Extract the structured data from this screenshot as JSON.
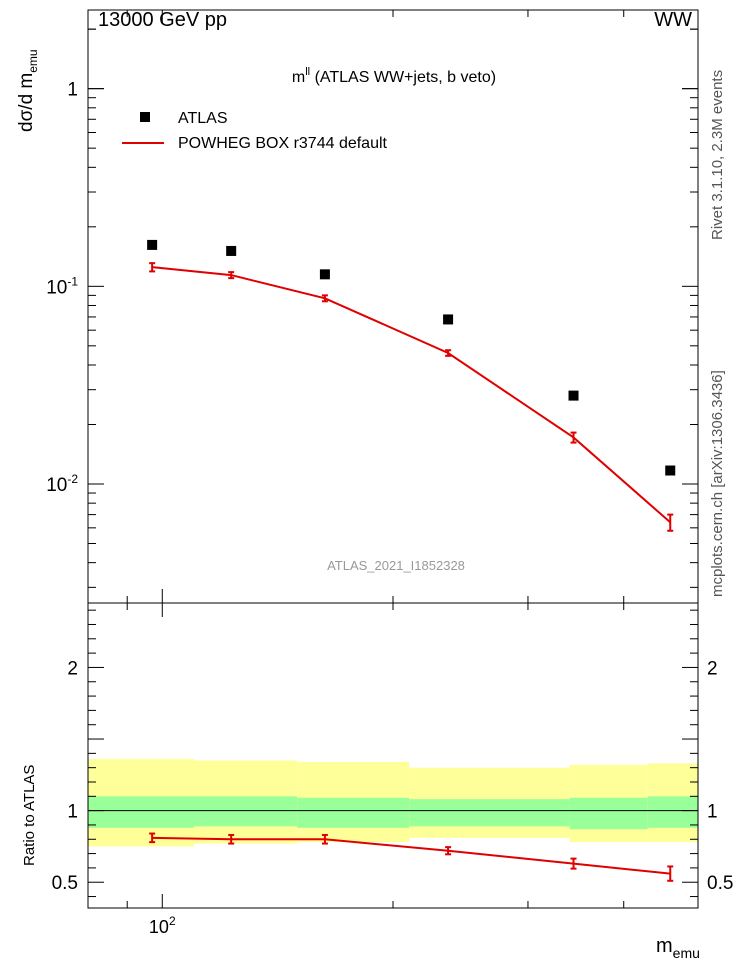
{
  "header": {
    "left": "13000 GeV pp",
    "right": "WW"
  },
  "plot_title": "m^{ll} (ATLAS WW+jets, b veto)",
  "plot_title_main": "m",
  "plot_title_sup": "ll",
  "plot_title_rest": " (ATLAS WW+jets, b veto)",
  "analysis_id": "ATLAS_2021_I1852328",
  "side_labels": {
    "rivet": "Rivet 3.1.10,  2.3M events",
    "mcplots": "mcplots.cern.ch [arXiv:1306.3436]"
  },
  "ylabel_main": {
    "prefix": "dσ/d m",
    "sub": "emu"
  },
  "ylabel_ratio": "Ratio to ATLAS",
  "xlabel": {
    "main": "m",
    "sub": "emu"
  },
  "legend": {
    "data": "ATLAS",
    "mc": "POWHEG BOX r3744 default"
  },
  "colors": {
    "data": "#000000",
    "mc": "#e00000",
    "band_outer": "#ffff99",
    "band_inner": "#99ff99"
  },
  "chart_data": {
    "type": "scatter",
    "xscale": "log",
    "yscale": "log",
    "xlim": [
      80,
      500
    ],
    "ylim": [
      0.0025,
      2.5
    ],
    "ratio_ylim": [
      0.32,
      2.45
    ],
    "xticks": [
      {
        "value": 100,
        "label": "10^2"
      }
    ],
    "yticks_main": [
      {
        "value": 1,
        "label": "1"
      },
      {
        "value": 0.1,
        "label": "10^-1"
      },
      {
        "value": 0.01,
        "label": "10^-2"
      }
    ],
    "yticks_ratio": [
      {
        "value": 0.5,
        "label": "0.5"
      },
      {
        "value": 1,
        "label": "1"
      },
      {
        "value": 2,
        "label": "2"
      }
    ],
    "bins": [
      {
        "lo": 80,
        "hi": 110
      },
      {
        "lo": 110,
        "hi": 150
      },
      {
        "lo": 150,
        "hi": 210
      },
      {
        "lo": 210,
        "hi": 340
      },
      {
        "lo": 340,
        "hi": 430
      },
      {
        "lo": 430,
        "hi": 500
      }
    ],
    "series": [
      {
        "name": "ATLAS",
        "x": [
          97,
          123,
          163,
          236,
          344,
          460
        ],
        "y": [
          0.162,
          0.151,
          0.115,
          0.068,
          0.028,
          0.0117
        ]
      },
      {
        "name": "POWHEG BOX r3744 default",
        "x": [
          97,
          123,
          163,
          236,
          344,
          460
        ],
        "y": [
          0.125,
          0.114,
          0.087,
          0.046,
          0.0172,
          0.0064
        ],
        "yerr": [
          0.006,
          0.004,
          0.003,
          0.0015,
          0.001,
          0.0006
        ]
      }
    ],
    "ratio": {
      "x": [
        97,
        123,
        163,
        236,
        344,
        460
      ],
      "y": [
        0.81,
        0.8,
        0.8,
        0.72,
        0.63,
        0.56
      ],
      "yerr": [
        0.03,
        0.03,
        0.03,
        0.025,
        0.035,
        0.05
      ],
      "band_inner": [
        [
          0.88,
          1.1
        ],
        [
          0.89,
          1.1
        ],
        [
          0.88,
          1.09
        ],
        [
          0.89,
          1.08
        ],
        [
          0.87,
          1.09
        ],
        [
          0.88,
          1.1
        ]
      ],
      "band_outer": [
        [
          0.75,
          1.36
        ],
        [
          0.77,
          1.35
        ],
        [
          0.78,
          1.34
        ],
        [
          0.81,
          1.3
        ],
        [
          0.78,
          1.32
        ],
        [
          0.78,
          1.33
        ]
      ]
    }
  }
}
